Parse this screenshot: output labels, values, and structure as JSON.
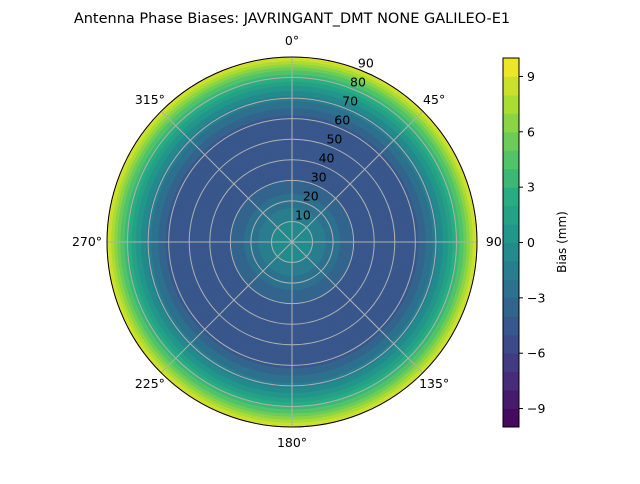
{
  "chart_data": {
    "type": "heatmap",
    "projection": "polar",
    "title": "Antenna Phase Biases: JAVRINGANT_DMT  NONE GALILEO-E1",
    "angular_tick_labels": [
      "0°",
      "45°",
      "90°",
      "135°",
      "180°",
      "225°",
      "270°",
      "315°"
    ],
    "radial_tick_labels": [
      "10",
      "20",
      "30",
      "40",
      "50",
      "60",
      "70",
      "80",
      "90"
    ],
    "radial_range": [
      0,
      90
    ],
    "grid": true,
    "colormap": "viridis",
    "colorbar": {
      "label": "Bias (mm)",
      "range": [
        -10,
        10
      ],
      "levels_step": 1,
      "tick_labels": [
        "−9",
        "−6",
        "−3",
        "0",
        "3",
        "6",
        "9"
      ],
      "ticks": [
        -9,
        -6,
        -3,
        0,
        3,
        6,
        9
      ]
    },
    "zenith_profile": {
      "zenith_deg": [
        0,
        10,
        20,
        30,
        40,
        50,
        60,
        65,
        70,
        75,
        80,
        85,
        90
      ],
      "bias_mm": [
        -0.5,
        -1,
        -2.5,
        -4,
        -5,
        -5,
        -4.5,
        -3,
        -1.5,
        0.5,
        3,
        6,
        9.5
      ]
    }
  }
}
